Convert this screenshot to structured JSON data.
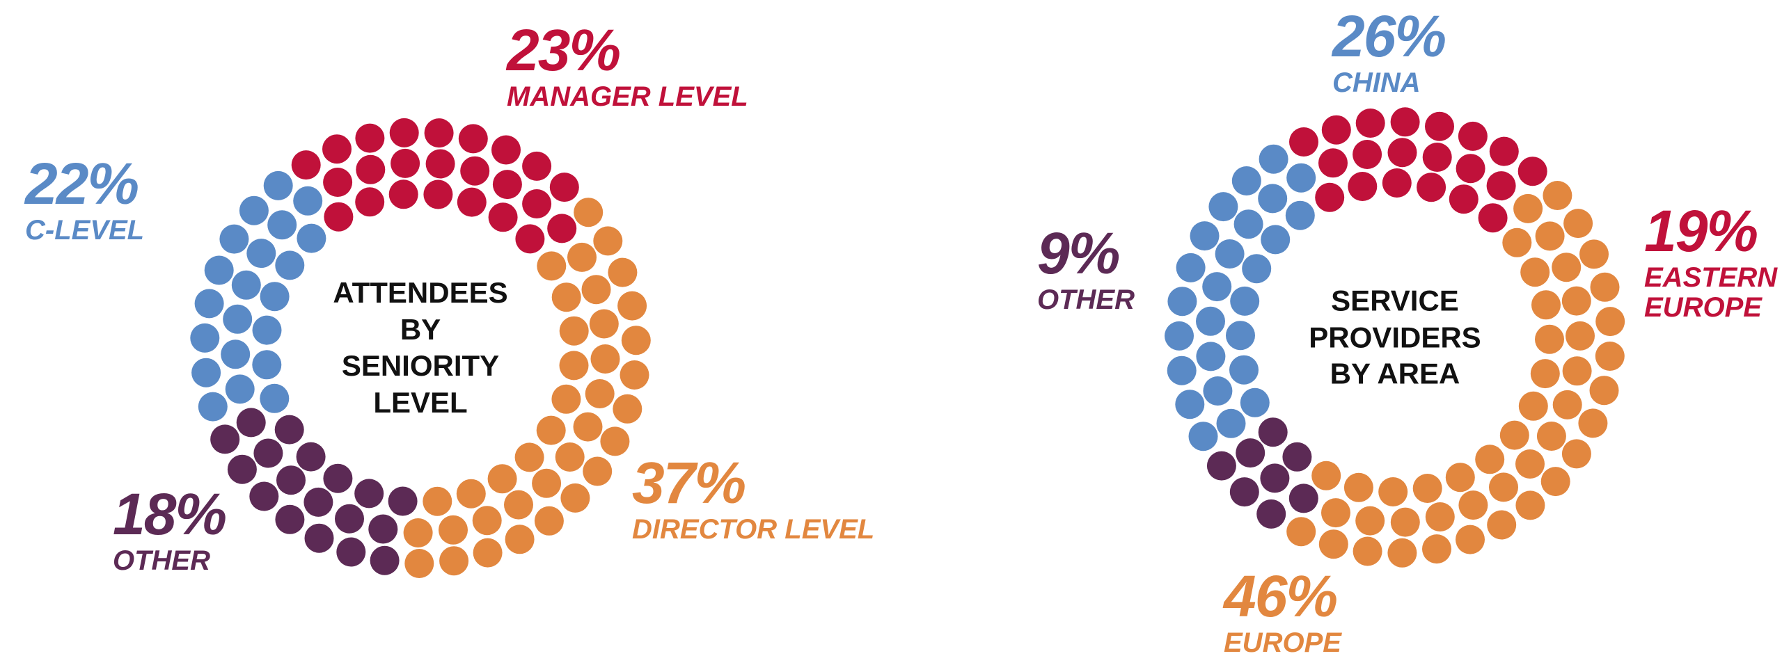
{
  "colors": {
    "blue": "#5a8ac6",
    "red": "#c0113a",
    "orange": "#e2873f",
    "purple": "#5c2a55"
  },
  "chart_data": [
    {
      "type": "pie",
      "title": "ATTENDEES BY SENIORITY LEVEL",
      "slices": [
        {
          "label": "MANAGER LEVEL",
          "pct_label": "23%",
          "value": 23,
          "color": "#c0113a"
        },
        {
          "label": "DIRECTOR LEVEL",
          "pct_label": "37%",
          "value": 37,
          "color": "#e2873f"
        },
        {
          "label": "OTHER",
          "pct_label": "18%",
          "value": 18,
          "color": "#5c2a55"
        },
        {
          "label": "C-LEVEL",
          "pct_label": "22%",
          "value": 22,
          "color": "#5a8ac6"
        }
      ]
    },
    {
      "type": "pie",
      "title": "SERVICE PROVIDERS BY AREA",
      "slices": [
        {
          "label": "EASTERN EUROPE",
          "pct_label": "19%",
          "value": 19,
          "color": "#c0113a"
        },
        {
          "label": "EUROPE",
          "pct_label": "46%",
          "value": 46,
          "color": "#e2873f"
        },
        {
          "label": "OTHER",
          "pct_label": "9%",
          "value": 9,
          "color": "#5c2a55"
        },
        {
          "label": "CHINA",
          "pct_label": "26%",
          "value": 26,
          "color": "#5a8ac6"
        }
      ]
    }
  ]
}
